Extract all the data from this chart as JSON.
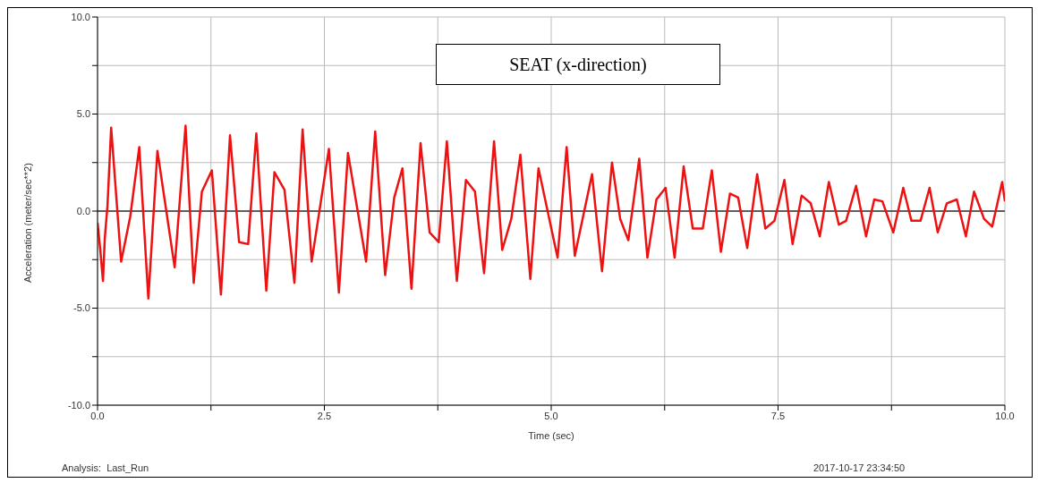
{
  "chart_data": {
    "type": "line",
    "title": "SEAT (x-direction)",
    "xlabel": "Time (sec)",
    "ylabel": "Acceleration (meter/sec**2)",
    "annotations": [
      "Analysis:  Last_Run",
      "2017-10-17 23:34:50"
    ],
    "x": [
      0,
      0.03,
      0.06,
      0.08,
      0.11,
      0.15,
      0.26,
      0.36,
      0.46,
      0.56,
      0.66,
      0.85,
      0.97,
      1.06,
      1.15,
      1.26,
      1.36,
      1.46,
      1.56,
      1.66,
      1.75,
      1.86,
      1.95,
      2.06,
      2.17,
      2.26,
      2.36,
      2.55,
      2.66,
      2.76,
      2.96,
      3.06,
      3.17,
      3.27,
      3.36,
      3.46,
      3.56,
      3.66,
      3.76,
      3.85,
      3.96,
      4.06,
      4.16,
      4.26,
      4.37,
      4.46,
      4.56,
      4.66,
      4.77,
      4.86,
      5.07,
      5.17,
      5.26,
      5.45,
      5.56,
      5.67,
      5.76,
      5.85,
      5.97,
      6.06,
      6.16,
      6.26,
      6.36,
      6.46,
      6.56,
      6.67,
      6.77,
      6.87,
      6.97,
      7.06,
      7.16,
      7.27,
      7.36,
      7.46,
      7.57,
      7.66,
      7.76,
      7.86,
      7.96,
      8.06,
      8.17,
      8.25,
      8.36,
      8.47,
      8.56,
      8.65,
      8.77,
      8.88,
      8.97,
      9.07,
      9.17,
      9.26,
      9.36,
      9.47,
      9.57,
      9.66,
      9.77,
      9.86,
      9.97,
      10
    ],
    "series": [
      {
        "color": "#ee1111",
        "values": [
          -0.6,
          -2,
          -3.6,
          -1.4,
          0.3,
          4.3,
          -2.6,
          -0.3,
          3.3,
          -4.5,
          3.1,
          -2.9,
          4.4,
          -3.7,
          1,
          2.1,
          -4.3,
          3.9,
          -1.6,
          -1.7,
          4,
          -4.1,
          2,
          1.1,
          -3.7,
          4.2,
          -2.6,
          3.2,
          -4.2,
          3,
          -2.6,
          4.1,
          -3.3,
          0.7,
          2.2,
          -4,
          3.5,
          -1.1,
          -1.6,
          3.6,
          -3.6,
          1.6,
          1,
          -3.2,
          3.6,
          -2,
          -0.4,
          2.9,
          -3.5,
          2.2,
          -2.4,
          3.3,
          -2.3,
          1.9,
          -3.1,
          2.5,
          -0.4,
          -1.5,
          2.7,
          -2.4,
          0.6,
          1.2,
          -2.4,
          2.3,
          -0.9,
          -0.9,
          2.1,
          -2.1,
          0.9,
          0.7,
          -1.9,
          1.9,
          -0.9,
          -0.5,
          1.6,
          -1.7,
          0.8,
          0.4,
          -1.3,
          1.5,
          -0.7,
          -0.5,
          1.3,
          -1.3,
          0.6,
          0.5,
          -1.1,
          1.2,
          -0.5,
          -0.5,
          1.2,
          -1.1,
          0.4,
          0.6,
          -1.3,
          1,
          -0.4,
          -0.8,
          1.5,
          0.5
        ]
      }
    ],
    "xlim": [
      0,
      10
    ],
    "ylim": [
      -10,
      10
    ],
    "xticks": [
      {
        "value": 0,
        "label": "0.0"
      },
      {
        "value": 1.25,
        "label": null
      },
      {
        "value": 2.5,
        "label": "2.5"
      },
      {
        "value": 3.75,
        "label": null
      },
      {
        "value": 5,
        "label": "5.0"
      },
      {
        "value": 6.25,
        "label": null
      },
      {
        "value": 7.5,
        "label": "7.5"
      },
      {
        "value": 8.75,
        "label": null
      },
      {
        "value": 10,
        "label": "10.0"
      }
    ],
    "yticks": [
      {
        "value": -10,
        "label": "-10.0"
      },
      {
        "value": -7.5,
        "label": null
      },
      {
        "value": -5,
        "label": "-5.0"
      },
      {
        "value": -2.5,
        "label": null
      },
      {
        "value": 0,
        "label": "0.0"
      },
      {
        "value": 2.5,
        "label": null
      },
      {
        "value": 5,
        "label": "5.0"
      },
      {
        "value": 7.5,
        "label": null
      },
      {
        "value": 10,
        "label": "10.0"
      }
    ],
    "ref_lines": [
      {
        "axis": "y",
        "value": 0,
        "color": "#333333"
      }
    ],
    "grid": true
  }
}
